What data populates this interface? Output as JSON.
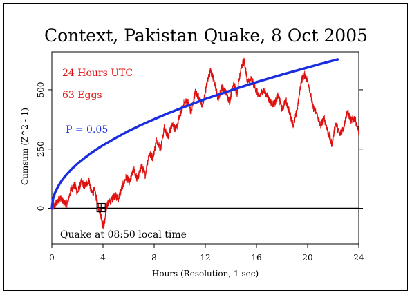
{
  "chart_data": {
    "type": "line",
    "title": "Context, Pakistan Quake, 8 Oct 2005",
    "xlabel": "Hours (Resolution, 1 sec)",
    "ylabel": "Cumsum (Z^2 - 1)",
    "xlim": [
      0,
      24
    ],
    "ylim": [
      -150,
      660
    ],
    "x_ticks": [
      0,
      4,
      8,
      12,
      16,
      20,
      24
    ],
    "y_ticks": [
      0,
      250,
      500
    ],
    "grid": false,
    "annotations": {
      "period": "24 Hours UTC",
      "eggs": "63 Eggs",
      "p_label": "P = 0.05",
      "event": "Quake at 08:50 local time"
    },
    "event_marker": {
      "x": 3.85,
      "y": 0
    },
    "series": [
      {
        "color": "#e01010",
        "x": [
          0,
          0.2,
          0.45,
          0.7,
          0.9,
          1.2,
          1.5,
          1.8,
          2.0,
          2.3,
          2.6,
          2.9,
          3.1,
          3.35,
          3.6,
          3.8,
          4.0,
          4.15,
          4.3,
          4.6,
          4.9,
          5.2,
          5.5,
          5.8,
          6.1,
          6.4,
          6.7,
          7.0,
          7.3,
          7.6,
          7.9,
          8.2,
          8.5,
          8.8,
          9.1,
          9.4,
          9.7,
          10.0,
          10.3,
          10.6,
          10.9,
          11.2,
          11.5,
          11.8,
          12.1,
          12.4,
          12.7,
          13.0,
          13.3,
          13.6,
          13.9,
          14.2,
          14.5,
          14.8,
          15.05,
          15.3,
          15.6,
          15.9,
          16.2,
          16.5,
          16.8,
          17.1,
          17.4,
          17.7,
          18.0,
          18.3,
          18.6,
          18.9,
          19.2,
          19.5,
          19.8,
          20.1,
          20.4,
          20.7,
          21.0,
          21.3,
          21.6,
          21.9,
          22.2,
          22.5,
          22.8,
          23.1,
          23.4,
          23.7,
          24.0
        ],
        "values": [
          5,
          10,
          30,
          45,
          25,
          20,
          80,
          100,
          65,
          110,
          95,
          120,
          65,
          75,
          10,
          -20,
          -75,
          -50,
          15,
          30,
          55,
          40,
          90,
          130,
          110,
          165,
          120,
          180,
          140,
          230,
          215,
          290,
          250,
          340,
          300,
          360,
          330,
          390,
          440,
          455,
          400,
          490,
          470,
          430,
          520,
          580,
          540,
          460,
          510,
          490,
          450,
          530,
          480,
          600,
          620,
          530,
          545,
          510,
          470,
          500,
          480,
          445,
          440,
          480,
          415,
          455,
          400,
          350,
          420,
          540,
          565,
          520,
          430,
          400,
          350,
          380,
          320,
          270,
          360,
          310,
          340,
          410,
          370,
          380,
          320
        ]
      },
      {
        "name": "P = 0.05",
        "color": "#1a2ee0",
        "x": [
          0,
          0.1,
          0.25,
          0.5,
          0.75,
          1,
          1.5,
          2,
          2.5,
          3,
          3.5,
          4,
          5,
          6,
          7,
          8,
          9,
          10,
          11,
          12,
          13,
          14,
          15,
          16,
          17,
          18,
          19,
          20,
          21,
          22,
          22.35
        ],
        "values": [
          0,
          42,
          66,
          94,
          115,
          133,
          163,
          188,
          210,
          230,
          249,
          266,
          297,
          326,
          352,
          376,
          399,
          420,
          441,
          461,
          479,
          497,
          515,
          532,
          548,
          564,
          579,
          594,
          609,
          623,
          628
        ]
      }
    ]
  }
}
